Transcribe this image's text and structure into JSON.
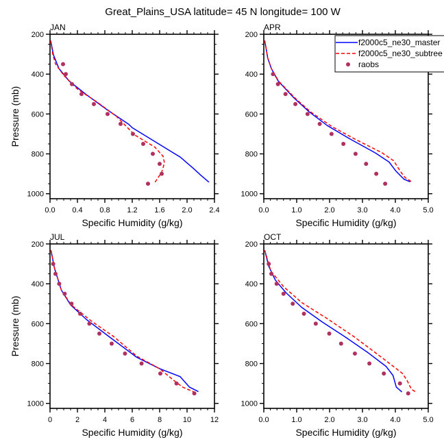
{
  "chart_data": {
    "type": "line",
    "title": "Great_Plains_USA  latitude= 45 N longitude= 100 W",
    "legend": {
      "placement": "top-right",
      "entries": [
        {
          "name": "f2000c5_ne30_master",
          "style": "solid",
          "color": "#0000ff"
        },
        {
          "name": "f2000c5_ne30_subtree",
          "style": "dashed",
          "color": "#ff0000"
        },
        {
          "name": "raobs",
          "style": "marker",
          "color": "#b03060"
        }
      ]
    },
    "panels": [
      {
        "label": "JAN",
        "xlabel": "Specific Humidity (g/kg)",
        "ylabel": "Pressure (mb)",
        "xlim": [
          0,
          2.4
        ],
        "ylim": [
          200,
          1025
        ],
        "y_reversed": true,
        "xticks": [
          0,
          0.4,
          0.8,
          1.2,
          1.6,
          2.0,
          2.4
        ],
        "xtick_labels": [
          "0.0",
          "0.4",
          "0.8",
          "1.2",
          "1.6",
          "2.0",
          "2.4"
        ],
        "xminor": 0.1,
        "yticks": [
          200,
          400,
          600,
          800,
          1000
        ],
        "ytick_labels": [
          "200",
          "400",
          "600",
          "800",
          "1000"
        ],
        "yminor": 50,
        "series": [
          {
            "name": "f2000c5_ne30_master",
            "x": [
              0.01,
              0.05,
              0.13,
              0.28,
              0.53,
              0.83,
              1.15,
              1.2,
              1.6,
              1.9,
              2.1,
              2.2,
              2.32
            ],
            "y": [
              232,
              303,
              372,
              435,
              503,
              578,
              652,
              669,
              753,
              816,
              875,
              907,
              942
            ]
          },
          {
            "name": "f2000c5_ne30_subtree",
            "x": [
              0.01,
              0.04,
              0.08,
              0.2,
              0.4,
              0.7,
              0.97,
              1.15,
              1.23,
              1.53,
              1.65,
              1.67,
              1.63,
              1.53
            ],
            "y": [
              232,
              300,
              349,
              406,
              475,
              543,
              612,
              675,
              704,
              766,
              812,
              846,
              892,
              944
            ]
          },
          {
            "name": "raobs",
            "x": [
              0.19,
              0.23,
              0.32,
              0.46,
              0.64,
              0.84,
              1.03,
              1.21,
              1.36,
              1.5,
              1.6,
              1.63,
              1.43
            ],
            "y": [
              350,
              400,
              450,
              500,
              550,
              600,
              650,
              700,
              750,
              800,
              850,
              900,
              950
            ]
          }
        ]
      },
      {
        "label": "APR",
        "xlabel": "Specific Humidity (g/kg)",
        "ylabel": "",
        "xlim": [
          0,
          5
        ],
        "ylim": [
          200,
          1025
        ],
        "y_reversed": true,
        "xticks": [
          0,
          1,
          2,
          3,
          4,
          5
        ],
        "xtick_labels": [
          "0.0",
          "1.0",
          "2.0",
          "3.0",
          "4.0",
          "5.0"
        ],
        "xminor": 0.2,
        "yticks": [
          200,
          400,
          600,
          800,
          1000
        ],
        "ytick_labels": [
          "200",
          "400",
          "600",
          "800",
          "1000"
        ],
        "yminor": 50,
        "series": [
          {
            "name": "f2000c5_ne30_master",
            "x": [
              0.03,
              0.12,
              0.23,
              0.44,
              0.92,
              1.38,
              1.93,
              2.63,
              3.39,
              3.81,
              4.02,
              4.26,
              4.45
            ],
            "y": [
              232,
              320,
              372,
              435,
              520,
              589,
              658,
              726,
              795,
              841,
              887,
              927,
              940
            ]
          },
          {
            "name": "f2000c5_ne30_subtree",
            "x": [
              0.03,
              0.12,
              0.23,
              0.45,
              0.95,
              1.42,
              2.07,
              2.77,
              3.6,
              3.95,
              4.15,
              4.29,
              4.48
            ],
            "y": [
              232,
              320,
              372,
              435,
              520,
              589,
              663,
              726,
              795,
              835,
              887,
              918,
              938
            ]
          },
          {
            "name": "raobs",
            "x": [
              0.28,
              0.43,
              0.66,
              0.96,
              1.33,
              1.7,
              2.06,
              2.42,
              2.79,
              3.11,
              3.42,
              3.69
            ],
            "y": [
              400,
              450,
              500,
              550,
              600,
              650,
              700,
              750,
              800,
              850,
              900,
              950
            ]
          }
        ]
      },
      {
        "label": "JUL",
        "xlabel": "Specific Humidity (g/kg)",
        "ylabel": "Pressure (mb)",
        "xlim": [
          0,
          12
        ],
        "ylim": [
          200,
          1025
        ],
        "y_reversed": true,
        "xticks": [
          0,
          2,
          4,
          6,
          8,
          10,
          12
        ],
        "xtick_labels": [
          "0",
          "2",
          "4",
          "6",
          "8",
          "10",
          "12"
        ],
        "xminor": 0.5,
        "yticks": [
          200,
          400,
          600,
          800,
          1000
        ],
        "ytick_labels": [
          "200",
          "400",
          "600",
          "800",
          "1000"
        ],
        "yminor": 50,
        "series": [
          {
            "name": "f2000c5_ne30_master",
            "x": [
              0.07,
              0.33,
              0.83,
              1.5,
              2.67,
              4.33,
              6.33,
              8.0,
              9.5,
              10.17,
              10.83
            ],
            "y": [
              232,
              323,
              432,
              506,
              580,
              666,
              769,
              826,
              866,
              918,
              941
            ]
          },
          {
            "name": "f2000c5_ne30_subtree",
            "x": [
              0.07,
              0.33,
              0.83,
              1.55,
              3.0,
              4.67,
              6.33,
              8.0,
              9.0,
              9.67,
              10.5
            ],
            "y": [
              232,
              323,
              432,
              506,
              586,
              666,
              763,
              826,
              883,
              918,
              943
            ]
          },
          {
            "name": "raobs",
            "x": [
              0.23,
              0.4,
              0.67,
              1.07,
              1.57,
              2.2,
              2.87,
              3.6,
              4.5,
              5.47,
              6.68,
              8.05,
              9.23,
              10.53
            ],
            "y": [
              300,
              350,
              400,
              450,
              500,
              550,
              600,
              650,
              700,
              750,
              800,
              850,
              900,
              950
            ]
          }
        ]
      },
      {
        "label": "OCT",
        "xlabel": "Specific Humidity (g/kg)",
        "ylabel": "",
        "xlim": [
          0,
          5
        ],
        "ylim": [
          200,
          1025
        ],
        "y_reversed": true,
        "xticks": [
          0,
          1,
          2,
          3,
          4,
          5
        ],
        "xtick_labels": [
          "0.0",
          "1.0",
          "2.0",
          "3.0",
          "4.0",
          "5.0"
        ],
        "xminor": 0.2,
        "yticks": [
          200,
          400,
          600,
          800,
          1000
        ],
        "ytick_labels": [
          "200",
          "400",
          "600",
          "800",
          "1000"
        ],
        "yminor": 50,
        "series": [
          {
            "name": "f2000c5_ne30_master",
            "x": [
              0.03,
              0.15,
              0.35,
              0.67,
              1.15,
              1.78,
              2.47,
              3.17,
              3.72,
              3.93,
              4.03,
              4.2
            ],
            "y": [
              232,
              312,
              381,
              444,
              518,
              592,
              666,
              746,
              815,
              860,
              918,
              943
            ]
          },
          {
            "name": "f2000c5_ne30_subtree",
            "x": [
              0.03,
              0.21,
              0.6,
              1.15,
              1.92,
              2.75,
              3.58,
              4.21,
              4.35,
              4.49,
              4.62
            ],
            "y": [
              232,
              335,
              414,
              494,
              574,
              666,
              769,
              849,
              883,
              929,
              943
            ]
          },
          {
            "name": "raobs",
            "x": [
              0.15,
              0.23,
              0.39,
              0.6,
              0.88,
              1.22,
              1.58,
              1.99,
              2.35,
              2.77,
              3.21,
              3.65,
              4.14,
              4.39
            ],
            "y": [
              300,
              350,
              400,
              450,
              500,
              550,
              600,
              650,
              700,
              750,
              800,
              850,
              900,
              950
            ]
          }
        ]
      }
    ]
  }
}
